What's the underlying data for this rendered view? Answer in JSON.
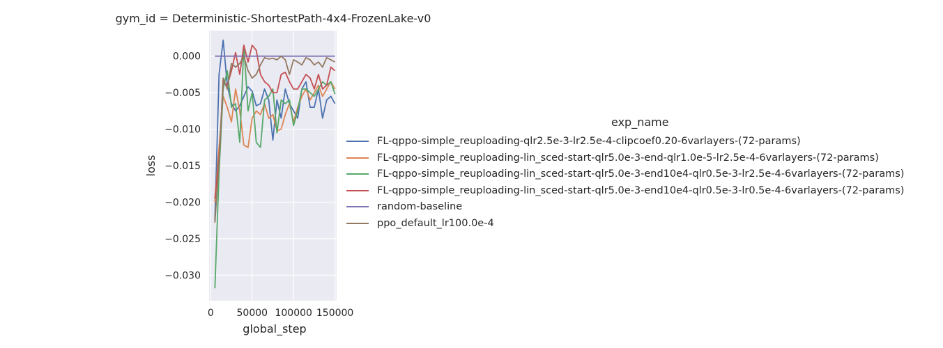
{
  "chart_data": {
    "type": "line",
    "title": "gym_id = Deterministic-ShortestPath-4x4-FrozenLake-v0",
    "xlabel": "global_step",
    "ylabel": "loss",
    "xlim": [
      -2000,
      152000
    ],
    "ylim": [
      -0.0335,
      0.0035
    ],
    "xticks": [
      0,
      50000,
      100000,
      150000
    ],
    "xtick_labels": [
      "0",
      "50000",
      "100000",
      "150000"
    ],
    "yticks": [
      0.0,
      -0.005,
      -0.01,
      -0.015,
      -0.02,
      -0.025,
      -0.03
    ],
    "ytick_labels": [
      "0.000",
      "−0.005",
      "−0.010",
      "−0.015",
      "−0.020",
      "−0.025",
      "−0.030"
    ],
    "grid": true,
    "legend_title": "exp_name",
    "legend_placement": "outside-right",
    "series": [
      {
        "name": "FL-qppo-simple_reuploading-qlr2.5e-3-lr2.5e-4-clipcoef0.20-6varlayers-(72-params)",
        "color": "#4c72b0",
        "x": [
          5000,
          10000,
          15000,
          20000,
          25000,
          30000,
          35000,
          40000,
          45000,
          50000,
          55000,
          60000,
          65000,
          70000,
          75000,
          80000,
          85000,
          90000,
          95000,
          100000,
          105000,
          110000,
          115000,
          120000,
          125000,
          130000,
          135000,
          140000,
          145000,
          150000
        ],
        "y": [
          -0.0225,
          -0.0025,
          0.0022,
          -0.004,
          -0.0065,
          -0.0075,
          -0.0068,
          -0.0055,
          -0.0042,
          -0.0048,
          -0.0068,
          -0.0065,
          -0.0045,
          -0.006,
          -0.0115,
          -0.006,
          -0.0085,
          -0.0045,
          -0.0065,
          -0.0075,
          -0.0085,
          -0.0045,
          -0.0035,
          -0.007,
          -0.007,
          -0.0045,
          -0.0085,
          -0.006,
          -0.0055,
          -0.0065
        ]
      },
      {
        "name": "FL-qppo-simple_reuploading-lin_sced-start-qlr5.0e-3-end-qlr1.0e-5-lr2.5e-4-6varlayers-(72-params)",
        "color": "#dd8452",
        "x": [
          5000,
          10000,
          15000,
          20000,
          25000,
          30000,
          35000,
          40000,
          45000,
          50000,
          55000,
          60000,
          65000,
          70000,
          75000,
          80000,
          85000,
          90000,
          95000,
          100000,
          105000,
          110000,
          115000,
          120000,
          125000,
          130000,
          135000,
          140000,
          145000,
          150000
        ],
        "y": [
          -0.02,
          -0.0125,
          -0.0055,
          -0.007,
          -0.009,
          -0.0045,
          -0.0075,
          -0.0122,
          -0.0125,
          -0.0085,
          -0.0075,
          -0.008,
          -0.0065,
          -0.0085,
          -0.008,
          -0.0102,
          -0.01,
          -0.008,
          -0.0065,
          -0.009,
          -0.007,
          -0.0055,
          -0.0045,
          -0.006,
          -0.005,
          -0.004,
          -0.0055,
          -0.0045,
          -0.0035,
          -0.0045
        ]
      },
      {
        "name": "FL-qppo-simple_reuploading-lin_sced-start-qlr5.0e-3-end10e4-qlr0.5e-3-lr2.5e-4-6varlayers-(72-params)",
        "color": "#55a868",
        "x": [
          5000,
          10000,
          15000,
          20000,
          25000,
          30000,
          35000,
          40000,
          45000,
          50000,
          55000,
          60000,
          65000,
          70000,
          75000,
          80000,
          85000,
          90000,
          95000,
          100000,
          105000,
          110000,
          115000,
          120000,
          125000,
          130000,
          135000,
          140000,
          145000,
          150000
        ],
        "y": [
          -0.0318,
          -0.016,
          -0.0045,
          -0.002,
          -0.007,
          -0.0065,
          -0.0118,
          0.0015,
          -0.0075,
          -0.005,
          -0.0118,
          -0.0125,
          -0.006,
          -0.0055,
          -0.0045,
          -0.0105,
          -0.006,
          -0.0065,
          -0.006,
          -0.0095,
          -0.0075,
          -0.0045,
          -0.0045,
          -0.005,
          -0.0055,
          -0.0045,
          -0.0035,
          -0.004,
          -0.0035,
          -0.0052
        ]
      },
      {
        "name": "FL-qppo-simple_reuploading-lin_sced-start-qlr5.0e-3-end10e4-qlr0.5e-3-lr0.5e-4-6varlayers-(72-params)",
        "color": "#c44e52",
        "x": [
          5000,
          10000,
          15000,
          20000,
          25000,
          30000,
          35000,
          40000,
          45000,
          50000,
          55000,
          60000,
          65000,
          70000,
          75000,
          80000,
          85000,
          90000,
          95000,
          100000,
          105000,
          110000,
          115000,
          120000,
          125000,
          130000,
          135000,
          140000,
          145000,
          150000
        ],
        "y": [
          -0.0195,
          -0.014,
          -0.0035,
          -0.004,
          -0.002,
          0.0005,
          -0.0025,
          0.0015,
          -0.0008,
          0.0015,
          0.0008,
          -0.0025,
          -0.0035,
          -0.004,
          -0.005,
          -0.005,
          -0.0025,
          -0.0022,
          -0.0035,
          -0.0045,
          -0.0045,
          -0.0035,
          -0.0025,
          -0.003,
          -0.0045,
          -0.0025,
          -0.0045,
          -0.004,
          -0.0015,
          -0.002
        ]
      },
      {
        "name": "random-baseline",
        "color": "#8172b3",
        "x": [
          5000,
          150000
        ],
        "y": [
          0.0,
          0.0
        ]
      },
      {
        "name": "ppo_default_lr100.0e-4",
        "color": "#937860",
        "x": [
          5000,
          10000,
          15000,
          20000,
          25000,
          30000,
          35000,
          40000,
          45000,
          50000,
          55000,
          60000,
          65000,
          70000,
          75000,
          80000,
          85000,
          90000,
          95000,
          100000,
          105000,
          110000,
          115000,
          120000,
          125000,
          130000,
          135000,
          140000,
          145000,
          150000
        ],
        "y": [
          -0.0228,
          -0.0145,
          -0.003,
          -0.0045,
          -0.001,
          -0.0015,
          -0.001,
          0.0,
          -0.002,
          -0.003,
          -0.0025,
          -0.0012,
          -0.0002,
          -0.0004,
          -0.0003,
          -0.0005,
          0.0,
          -0.0005,
          -0.0025,
          -0.0005,
          -0.0008,
          -0.0012,
          -0.0002,
          -0.0005,
          -0.0012,
          -0.0008,
          -0.0015,
          -0.0002,
          -0.0005,
          -0.0008
        ]
      }
    ]
  }
}
